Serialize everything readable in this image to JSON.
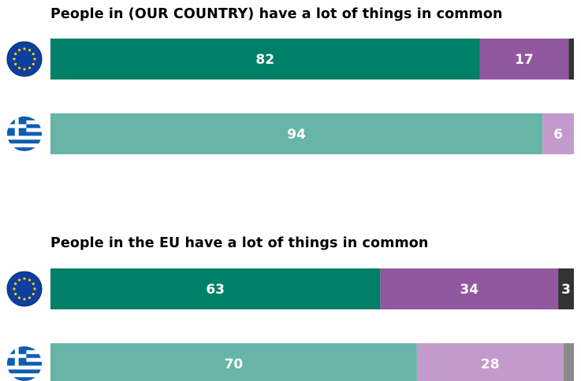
{
  "colors": {
    "eu_agree": "#008066",
    "eu_disagree": "#91589F",
    "eu_dk": "#333333",
    "gr_agree": "#66B5A6",
    "gr_disagree": "#C39ACB",
    "gr_dk": "#8A8A8A",
    "label": "#FFFFFF"
  },
  "chart_data": [
    {
      "type": "bar",
      "orientation": "horizontal",
      "stacked": true,
      "title": "People in (OUR COUNTRY) have a lot of things in common",
      "rows": [
        {
          "flag": "eu-flag-icon",
          "values": [
            82,
            17,
            1
          ],
          "labels": [
            "82",
            "17",
            ""
          ]
        },
        {
          "flag": "greece-flag-icon",
          "values": [
            94,
            6,
            0
          ],
          "labels": [
            "94",
            "6",
            ""
          ]
        }
      ]
    },
    {
      "type": "bar",
      "orientation": "horizontal",
      "stacked": true,
      "title": "People in the EU have a lot of things in common",
      "rows": [
        {
          "flag": "eu-flag-icon",
          "values": [
            63,
            34,
            3
          ],
          "labels": [
            "63",
            "34",
            "3"
          ]
        },
        {
          "flag": "greece-flag-icon",
          "values": [
            70,
            28,
            2
          ],
          "labels": [
            "70",
            "28",
            ""
          ]
        }
      ]
    }
  ]
}
